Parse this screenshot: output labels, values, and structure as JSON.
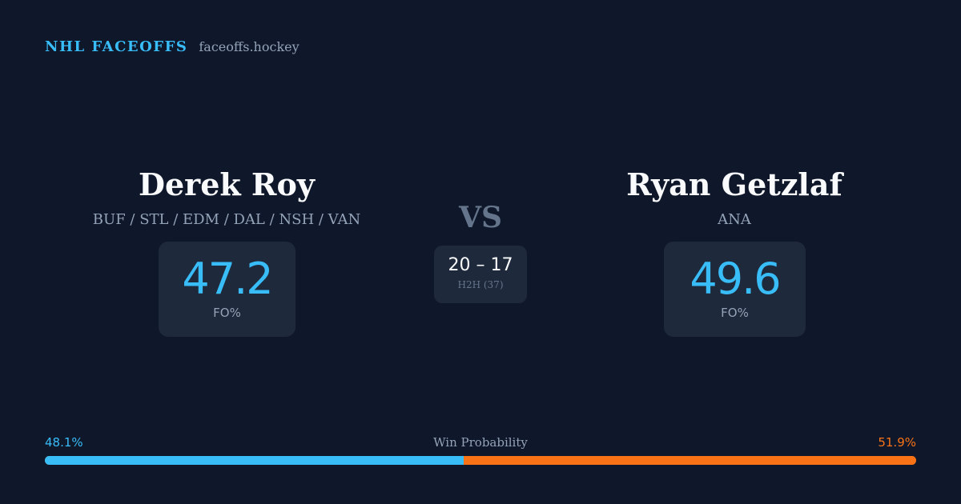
{
  "brand": {
    "name": "NHL FACEOFFS",
    "url": "faceoffs.hockey"
  },
  "player_left": {
    "name": "Derek Roy",
    "teams": "BUF / STL / EDM / DAL / NSH / VAN",
    "fo_pct": "47.2",
    "fo_label": "FO%"
  },
  "player_right": {
    "name": "Ryan Getzlaf",
    "teams": "ANA",
    "fo_pct": "49.6",
    "fo_label": "FO%"
  },
  "vs_label": "VS",
  "h2h": {
    "score": "20 – 17",
    "label": "H2H (37)"
  },
  "win_probability": {
    "title": "Win Probability",
    "left_label": "48.1%",
    "right_label": "51.9%",
    "left_fraction": 0.481,
    "right_fraction": 0.519,
    "left_color": "#38bdf8",
    "right_color": "#f97316"
  }
}
